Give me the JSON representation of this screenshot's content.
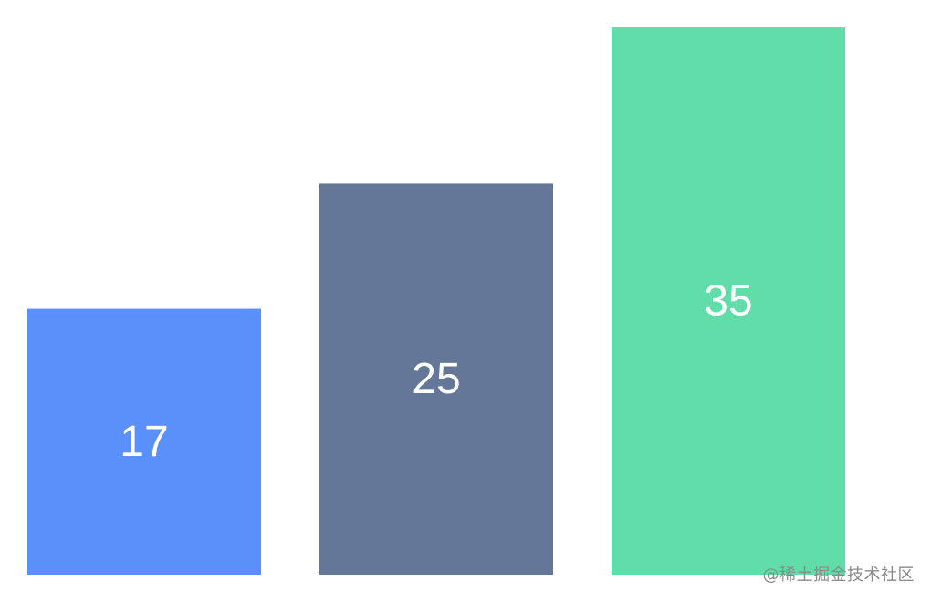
{
  "chart_data": {
    "type": "bar",
    "categories": [
      "",
      "",
      ""
    ],
    "values": [
      17,
      25,
      35
    ],
    "data_labels": [
      "17",
      "25",
      "35"
    ],
    "colors": [
      "#5b8ff9",
      "#657798",
      "#61ddaa"
    ],
    "label_color": "#ffffff",
    "ylim": [
      0,
      35
    ],
    "grid": false,
    "legend": "none",
    "title": "",
    "xlabel": "",
    "ylabel": ""
  },
  "watermark": {
    "text": "@稀土掘金技术社区"
  }
}
